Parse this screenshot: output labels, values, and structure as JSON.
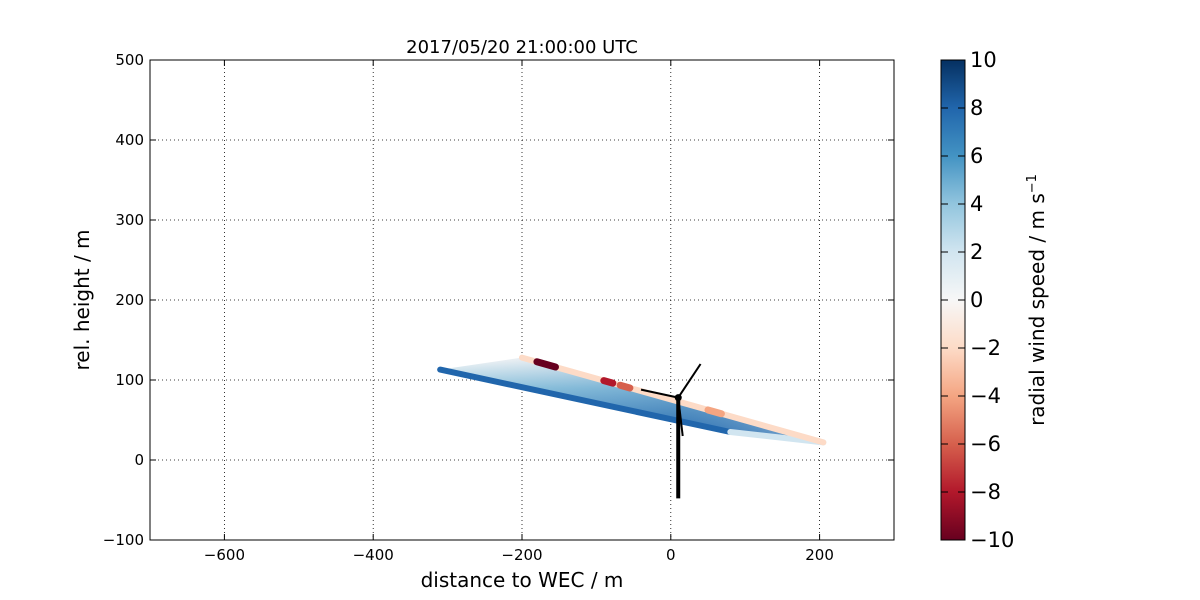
{
  "chart_data": {
    "type": "scatter",
    "title": "2017/05/20 21:00:00 UTC",
    "xlabel": "distance to WEC / m",
    "ylabel": "rel. height / m",
    "xlim": [
      -700,
      300
    ],
    "ylim": [
      -100,
      500
    ],
    "xticks": [
      -600,
      -400,
      -200,
      0,
      200
    ],
    "yticks": [
      -100,
      0,
      100,
      200,
      300,
      400,
      500
    ],
    "xtick_labels": [
      "−600",
      "−400",
      "−200",
      "0",
      "200"
    ],
    "ytick_labels": [
      "−100",
      "0",
      "100",
      "200",
      "300",
      "400",
      "500"
    ],
    "grid": true,
    "scan": {
      "fan_apex_upper": [
        -200,
        128
      ],
      "fan_apex_lower": [
        -310,
        113
      ],
      "fan_end_upper": [
        205,
        22
      ],
      "fan_end_lower": [
        80,
        35
      ]
    },
    "negative_segments": [
      {
        "x0": -180,
        "x1": -155,
        "value": -10
      },
      {
        "x0": -90,
        "x1": -78,
        "value": -9
      },
      {
        "x0": -68,
        "x1": -55,
        "value": -7
      },
      {
        "x0": 50,
        "x1": 68,
        "value": -4
      }
    ],
    "turbine": {
      "hub": [
        10,
        78
      ],
      "tower_base": [
        10,
        -48
      ],
      "blades": [
        [
          40,
          120
        ],
        [
          -40,
          88
        ],
        [
          16,
          30
        ]
      ]
    },
    "colorbar": {
      "label": "radial wind speed / m s",
      "label_sup": "−1",
      "vmin": -10,
      "vmax": 10,
      "ticks": [
        10,
        8,
        6,
        4,
        2,
        0,
        -2,
        -4,
        -6,
        -8,
        -10
      ],
      "tick_labels": [
        "10",
        "8",
        "6",
        "4",
        "2",
        "0",
        "−2",
        "−4",
        "−6",
        "−8",
        "−10"
      ],
      "colormap": "RdBu",
      "colors": [
        "#67001f",
        "#b2182b",
        "#d6604d",
        "#f4a582",
        "#fddbc7",
        "#f7f7f7",
        "#d1e5f0",
        "#92c5de",
        "#4393c3",
        "#2166ac",
        "#053061"
      ]
    }
  }
}
